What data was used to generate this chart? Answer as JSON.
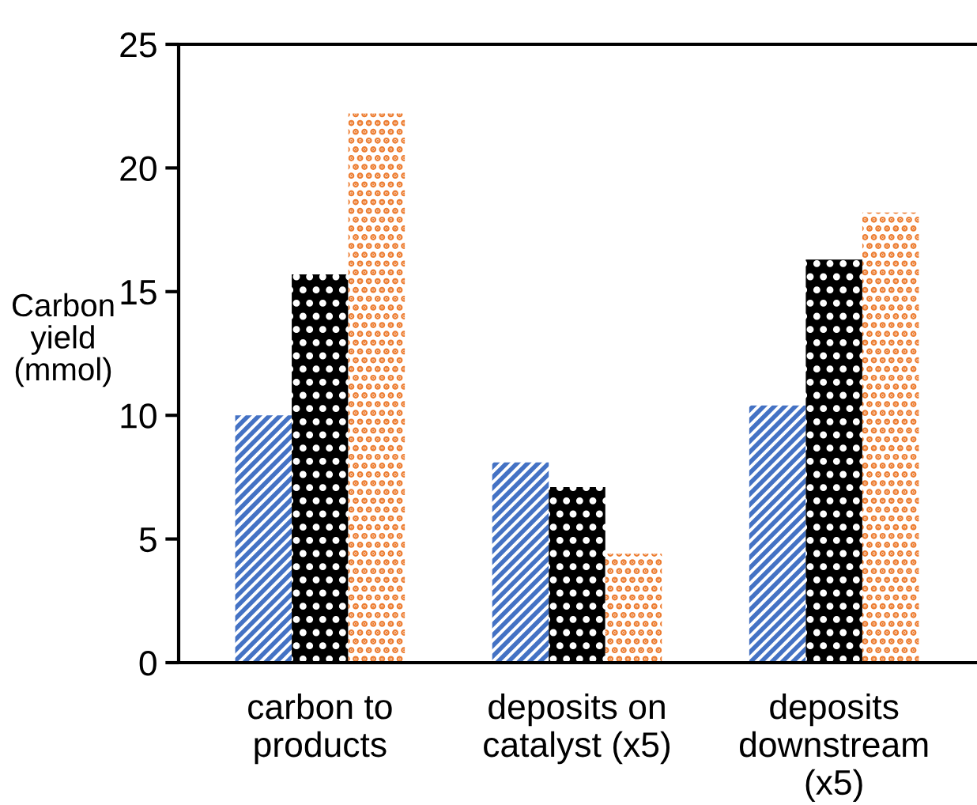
{
  "chart_data": {
    "type": "bar",
    "ylabel": "Carbon\nyield\n(mmol)",
    "categories": [
      "carbon to\nproducts",
      "deposits on\ncatalyst (x5)",
      "deposits\ndownstream\n(x5)"
    ],
    "series": [
      {
        "color": "#4472c4",
        "values": [
          10.0,
          8.1,
          10.4
        ]
      },
      {
        "color": "#000000",
        "values": [
          15.7,
          7.1,
          16.3
        ]
      },
      {
        "color": "#ed7d31",
        "values": [
          22.2,
          4.4,
          18.2
        ]
      }
    ],
    "ylim": [
      0,
      25
    ],
    "yticks": [
      0,
      5,
      10,
      15,
      20,
      25
    ],
    "grid": false,
    "legend": false
  }
}
